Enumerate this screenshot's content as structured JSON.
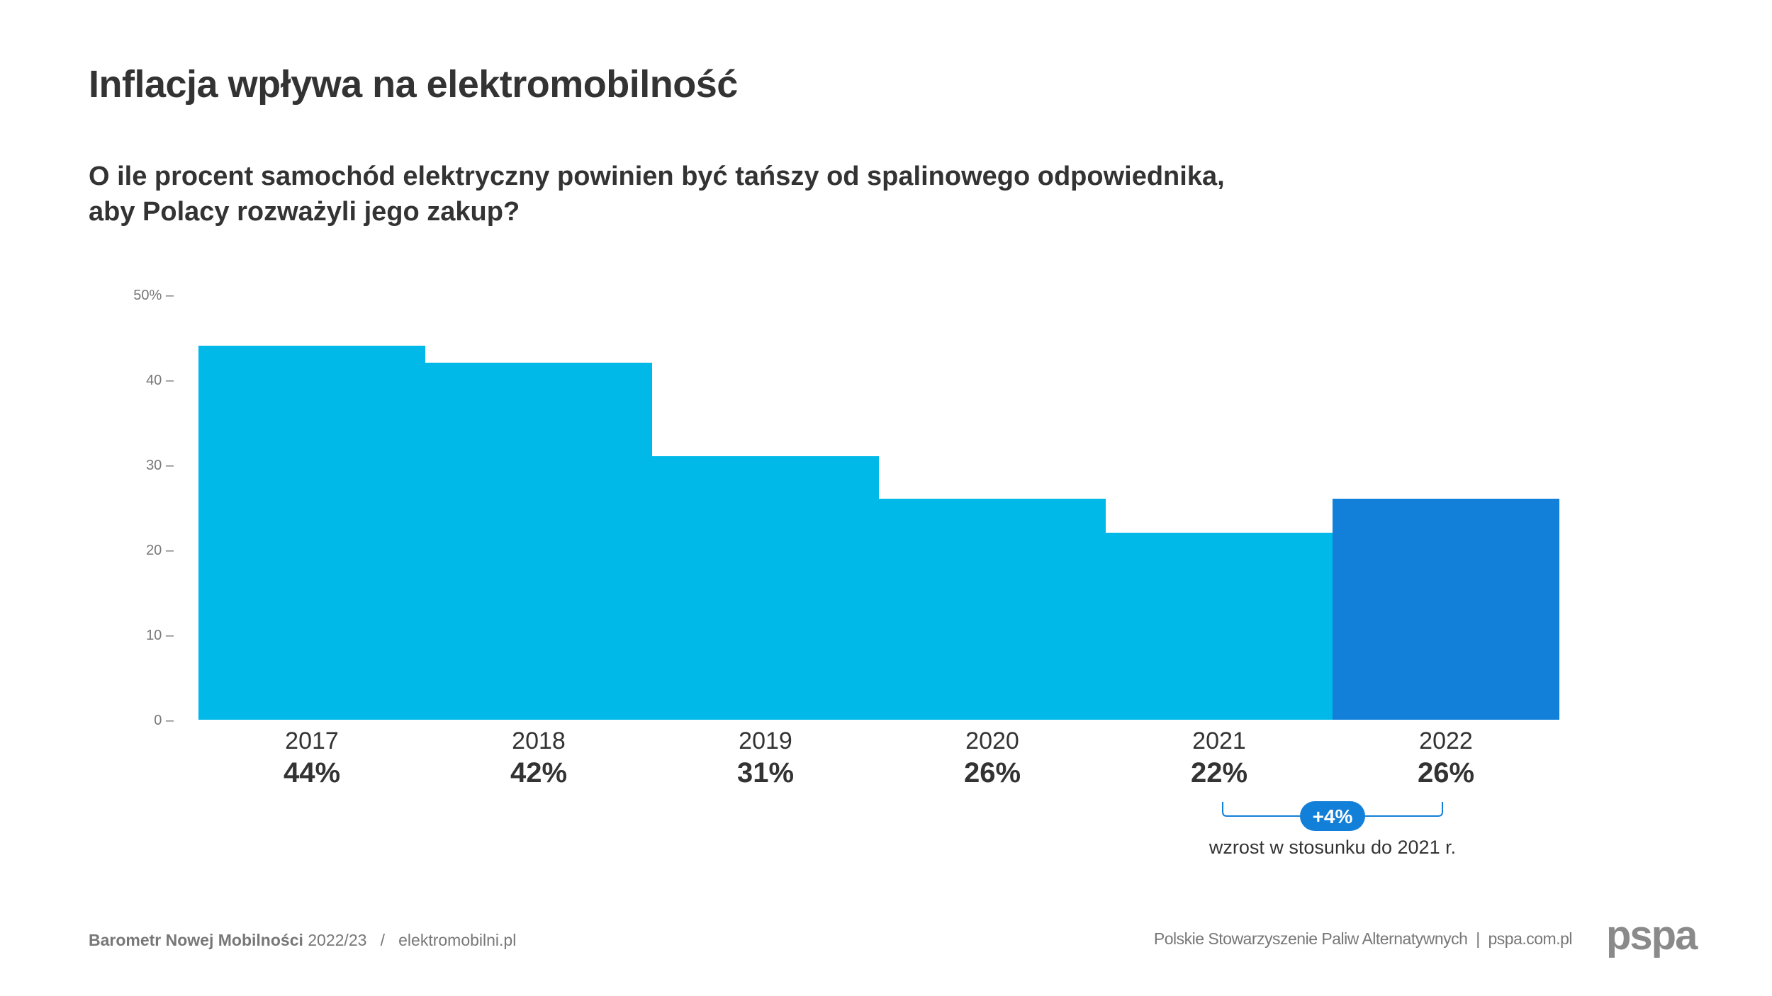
{
  "header": {
    "title": "Inflacja wpływa na elektromobilność",
    "subtitle_line1": "O ile procent samochód elektryczny powinien być tańszy od spalinowego odpowiednika,",
    "subtitle_line2": "aby Polacy rozważyli jego zakup?"
  },
  "chart_data": {
    "type": "bar",
    "categories": [
      "2017",
      "2018",
      "2019",
      "2020",
      "2021",
      "2022"
    ],
    "values": [
      44,
      42,
      31,
      26,
      22,
      26
    ],
    "value_labels": [
      "44%",
      "42%",
      "31%",
      "26%",
      "22%",
      "26%"
    ],
    "ylim": [
      0,
      50
    ],
    "yticks": [
      0,
      10,
      20,
      30,
      40,
      50
    ],
    "ytick_labels": [
      "0 –",
      "10 –",
      "20 –",
      "30 –",
      "40 –",
      "50% –"
    ],
    "grid": false,
    "colors": {
      "default": "#00B9E9",
      "highlight": "#127FD9",
      "highlight_index": 5
    },
    "annotation": {
      "badge": "+4%",
      "text": "wzrost w stosunku do 2021 r.",
      "from": "2021",
      "to": "2022"
    }
  },
  "footer": {
    "publication": "Barometr Nowej Mobilności",
    "edition": " 2022/23",
    "separator": "   /   ",
    "site": "elektromobilni.pl",
    "organization": "Polskie Stowarzyszenie Paliw Alternatywnych",
    "org_separator": "  |  ",
    "org_site": "pspa.com.pl",
    "logo": "pspa"
  }
}
